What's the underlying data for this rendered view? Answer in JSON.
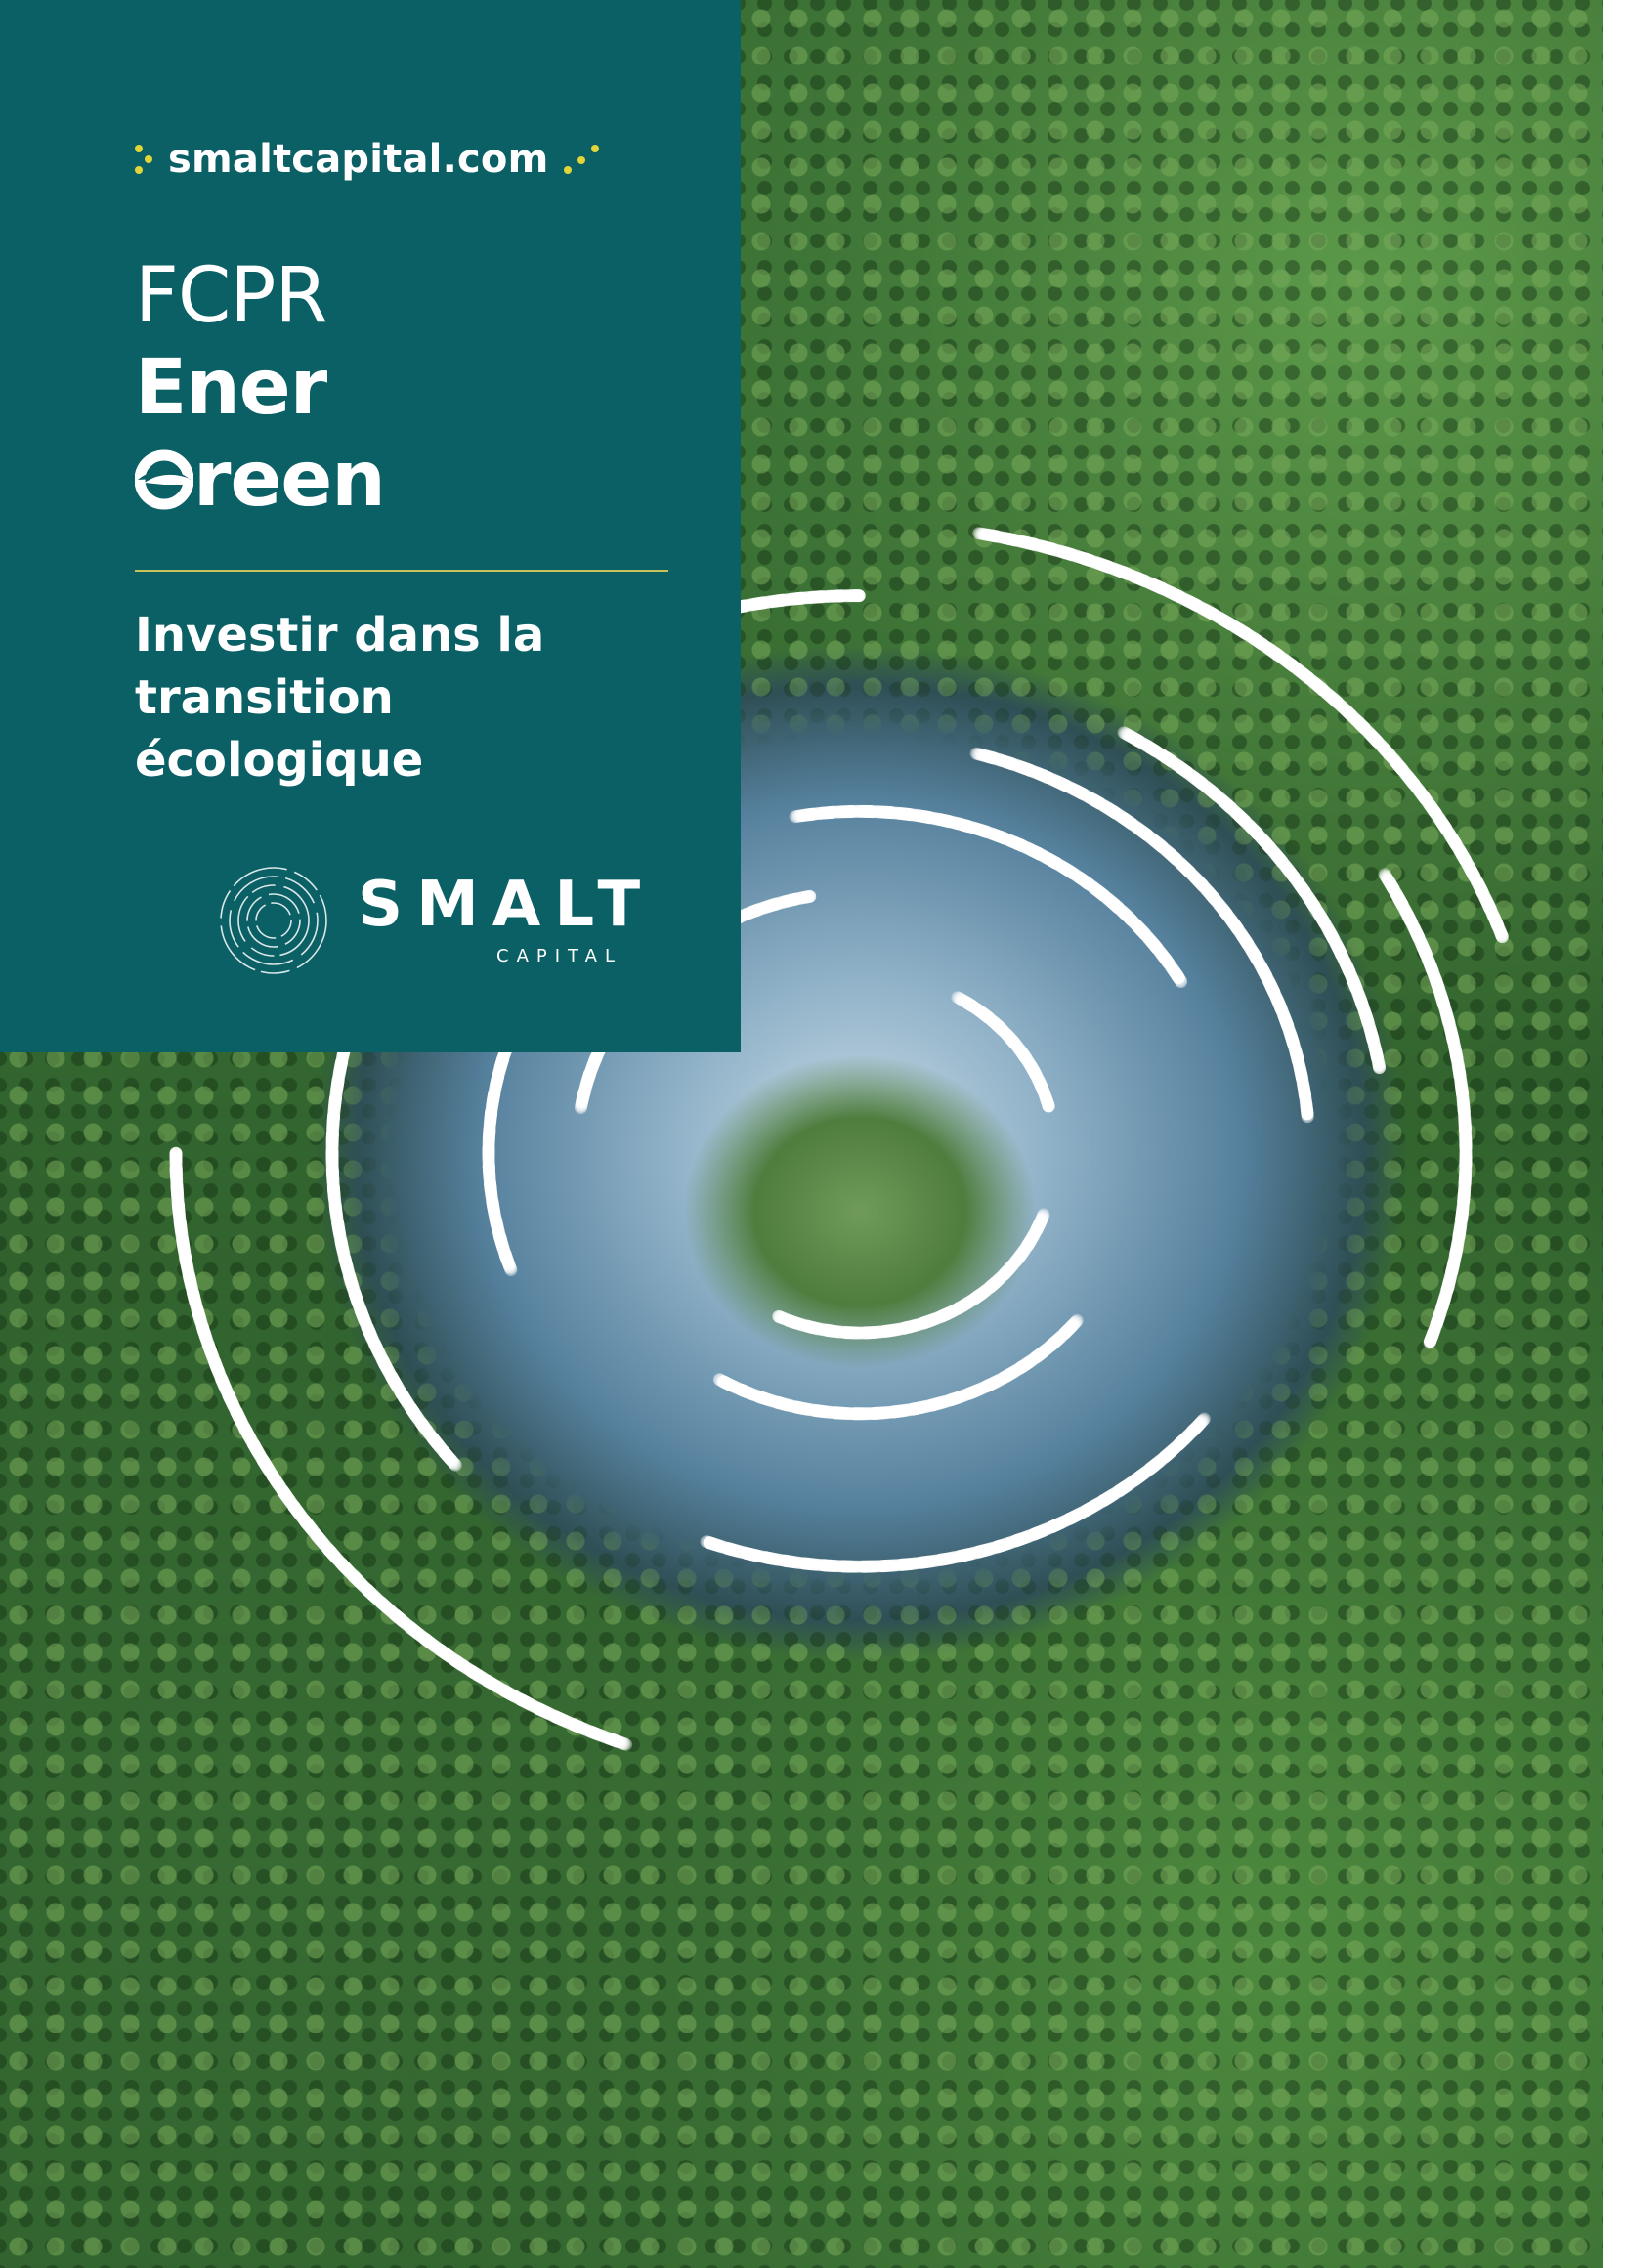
{
  "cover": {
    "website": "smaltcapital.com",
    "title_line1": "FCPR",
    "title_line2": "Ener",
    "title_line3_suffix": "reen",
    "tagline_lines": [
      "Investir dans la",
      "transition",
      "écologique"
    ],
    "brand_name": "SMALT",
    "brand_sub": "CAPITAL"
  },
  "colors": {
    "panel": "#0a6065",
    "accent_yellow": "#e3d43a",
    "rule": "#c7c25a",
    "text": "#ffffff"
  },
  "icons": {
    "site_prefix": "dots-icon",
    "site_suffix": "dots-icon",
    "title_g": "leaf-g-icon",
    "brand_logo": "concentric-rings-logo-icon"
  }
}
